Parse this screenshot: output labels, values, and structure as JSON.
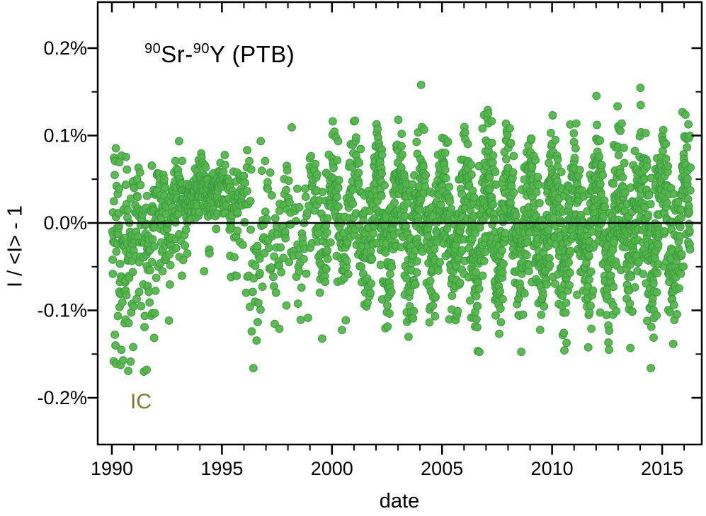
{
  "chart_data": {
    "type": "scatter",
    "title_plain": "90Sr-90Y (PTB)",
    "title_parts": {
      "sup1": "90",
      "mid": "Sr-",
      "sup2": "90",
      "rest": "Y (PTB)"
    },
    "xlabel": "date",
    "ylabel": "I / <I> - 1",
    "series_label": "IC",
    "series_label_color": "#7c7b2e",
    "marker_fill": "#55b54b",
    "marker_edge": "#379b3f",
    "axis_color": "#000000",
    "background": "#ffffff",
    "xlim": [
      1989.357,
      2016.8
    ],
    "ylim_percent": [
      -0.2534,
      0.2526
    ],
    "x_major_ticks": [
      1990,
      1995,
      2000,
      2005,
      2010,
      2015
    ],
    "x_tick_labels": [
      "1990",
      "1995",
      "2000",
      "2005",
      "2010",
      "2015"
    ],
    "x_minor_step_years": 1,
    "y_major_ticks_percent": [
      0.2,
      0.1,
      0.0,
      -0.1,
      -0.2
    ],
    "y_tick_labels": [
      "0.2%",
      "0.1%",
      "0.0%",
      "-0.1%",
      "-0.2%"
    ],
    "y_minor_ticks_percent": [
      0.15,
      0.05,
      -0.05,
      -0.15
    ],
    "zero_line": true,
    "grid": false,
    "legend_position": "none",
    "y_range_observed_percent": [
      -0.19,
      0.16
    ],
    "n_points_estimate": 2700,
    "points_model": {
      "comment": "Relative ionization-chamber current deviation of a 90Sr-90Y source at PTB vs date; dense weekly data 1990-2016.3 with annual oscillation; values in percent. by_year gives measurement rate, yearly mean, seasonal amplitude, gaussian scatter sd, and low-side outlier tail.",
      "seed": 7,
      "start_year": 1990.02,
      "end_year": 2016.3,
      "season_peak": 0.05,
      "by_year": [
        {
          "year": 1990,
          "n_per_year": 95,
          "mean": -0.03,
          "seasonal_amp": 0.012,
          "scatter_sd": 0.045,
          "low_tail_prob": 0.22,
          "low_tail_depth": 0.1
        },
        {
          "year": 1991,
          "n_per_year": 85,
          "mean": -0.005,
          "seasonal_amp": 0.015,
          "scatter_sd": 0.035,
          "low_tail_prob": 0.2,
          "low_tail_depth": 0.09
        },
        {
          "year": 1992,
          "n_per_year": 85,
          "mean": 0.02,
          "seasonal_amp": 0.014,
          "scatter_sd": 0.025,
          "low_tail_prob": 0.16,
          "low_tail_depth": 0.09
        },
        {
          "year": 1993,
          "n_per_year": 95,
          "mean": 0.035,
          "seasonal_amp": 0.01,
          "scatter_sd": 0.016,
          "low_tail_prob": 0.1,
          "low_tail_depth": 0.08
        },
        {
          "year": 1994,
          "n_per_year": 95,
          "mean": 0.04,
          "seasonal_amp": 0.01,
          "scatter_sd": 0.015,
          "low_tail_prob": 0.08,
          "low_tail_depth": 0.07
        },
        {
          "year": 1995,
          "n_per_year": 75,
          "mean": 0.035,
          "seasonal_amp": 0.012,
          "scatter_sd": 0.018,
          "low_tail_prob": 0.1,
          "low_tail_depth": 0.09
        },
        {
          "year": 1996,
          "n_per_year": 50,
          "mean": -0.005,
          "seasonal_amp": 0.03,
          "scatter_sd": 0.04,
          "low_tail_prob": 0.15,
          "low_tail_depth": 0.09
        },
        {
          "year": 1997,
          "n_per_year": 45,
          "mean": -0.01,
          "seasonal_amp": 0.032,
          "scatter_sd": 0.038,
          "low_tail_prob": 0.12,
          "low_tail_depth": 0.08
        },
        {
          "year": 1998,
          "n_per_year": 42,
          "mean": -0.012,
          "seasonal_amp": 0.035,
          "scatter_sd": 0.04,
          "low_tail_prob": 0.1,
          "low_tail_depth": 0.08
        },
        {
          "year": 1999,
          "n_per_year": 70,
          "mean": 0.01,
          "seasonal_amp": 0.04,
          "scatter_sd": 0.032,
          "low_tail_prob": 0.06,
          "low_tail_depth": 0.06
        },
        {
          "year": 2000,
          "n_per_year": 85,
          "mean": 0.008,
          "seasonal_amp": 0.045,
          "scatter_sd": 0.034,
          "low_tail_prob": 0.06,
          "low_tail_depth": 0.06
        },
        {
          "year": 2001,
          "n_per_year": 95,
          "mean": 0.0,
          "seasonal_amp": 0.045,
          "scatter_sd": 0.038,
          "low_tail_prob": 0.06,
          "low_tail_depth": 0.06
        },
        {
          "year": 2002,
          "n_per_year": 130,
          "mean": 0.005,
          "seasonal_amp": 0.058,
          "scatter_sd": 0.04,
          "low_tail_prob": 0.05,
          "low_tail_depth": 0.05
        },
        {
          "year": 2003,
          "n_per_year": 130,
          "mean": 0.0,
          "seasonal_amp": 0.052,
          "scatter_sd": 0.04,
          "low_tail_prob": 0.05,
          "low_tail_depth": 0.05
        },
        {
          "year": 2004,
          "n_per_year": 115,
          "mean": 0.0,
          "seasonal_amp": 0.05,
          "scatter_sd": 0.038,
          "low_tail_prob": 0.05,
          "low_tail_depth": 0.05
        },
        {
          "year": 2005,
          "n_per_year": 115,
          "mean": 0.0,
          "seasonal_amp": 0.05,
          "scatter_sd": 0.038,
          "low_tail_prob": 0.05,
          "low_tail_depth": 0.05
        },
        {
          "year": 2006,
          "n_per_year": 130,
          "mean": 0.002,
          "seasonal_amp": 0.056,
          "scatter_sd": 0.04,
          "low_tail_prob": 0.05,
          "low_tail_depth": 0.05
        },
        {
          "year": 2007,
          "n_per_year": 135,
          "mean": 0.005,
          "seasonal_amp": 0.06,
          "scatter_sd": 0.04,
          "low_tail_prob": 0.05,
          "low_tail_depth": 0.05
        },
        {
          "year": 2008,
          "n_per_year": 115,
          "mean": -0.004,
          "seasonal_amp": 0.05,
          "scatter_sd": 0.042,
          "low_tail_prob": 0.06,
          "low_tail_depth": 0.06
        },
        {
          "year": 2009,
          "n_per_year": 130,
          "mean": 0.004,
          "seasonal_amp": 0.052,
          "scatter_sd": 0.04,
          "low_tail_prob": 0.05,
          "low_tail_depth": 0.05
        },
        {
          "year": 2010,
          "n_per_year": 130,
          "mean": 0.0,
          "seasonal_amp": 0.05,
          "scatter_sd": 0.04,
          "low_tail_prob": 0.05,
          "low_tail_depth": 0.05
        },
        {
          "year": 2011,
          "n_per_year": 125,
          "mean": 0.0,
          "seasonal_amp": 0.046,
          "scatter_sd": 0.04,
          "low_tail_prob": 0.05,
          "low_tail_depth": 0.05
        },
        {
          "year": 2012,
          "n_per_year": 130,
          "mean": 0.0,
          "seasonal_amp": 0.046,
          "scatter_sd": 0.042,
          "low_tail_prob": 0.06,
          "low_tail_depth": 0.06
        },
        {
          "year": 2013,
          "n_per_year": 130,
          "mean": 0.0,
          "seasonal_amp": 0.046,
          "scatter_sd": 0.044,
          "low_tail_prob": 0.06,
          "low_tail_depth": 0.07
        },
        {
          "year": 2014,
          "n_per_year": 135,
          "mean": 0.0,
          "seasonal_amp": 0.046,
          "scatter_sd": 0.044,
          "low_tail_prob": 0.05,
          "low_tail_depth": 0.06
        },
        {
          "year": 2015,
          "n_per_year": 120,
          "mean": 0.0,
          "seasonal_amp": 0.044,
          "scatter_sd": 0.04,
          "low_tail_prob": 0.05,
          "low_tail_depth": 0.06
        },
        {
          "year": 2016,
          "n_per_year": 130,
          "mean": 0.005,
          "seasonal_amp": 0.05,
          "scatter_sd": 0.04,
          "low_tail_prob": 0.05,
          "low_tail_depth": 0.05
        }
      ]
    }
  }
}
